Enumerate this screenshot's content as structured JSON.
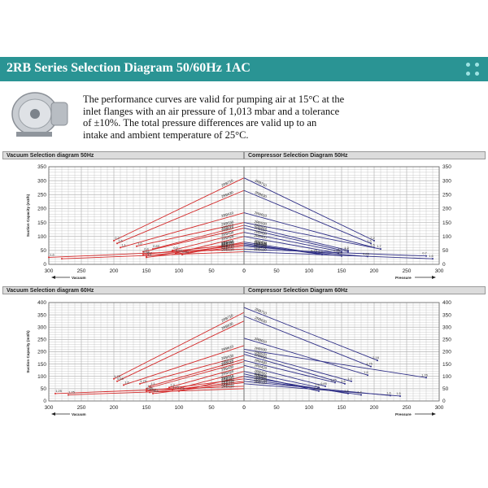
{
  "title": "2RB Series Selection Diagram 50/60Hz 1AC",
  "description_lines": [
    "The performance curves are valid for pumping air at 15°C at the",
    "inlet flanges with an air pressure of 1,013 mbar and a tolerance",
    "of ±10%. The total pressure differences are valid up to an",
    "intake and ambient temperature of 25°C."
  ],
  "colors": {
    "header_bg": "#2a9494",
    "vacuum": "#d42a2a",
    "pressure": "#2e2e86",
    "grid": "#b5b5b5"
  },
  "icons": {
    "product": "side-channel-blower-image",
    "menu": "dots-grid-icon"
  },
  "chart_data": [
    {
      "panel": "Vacuum Selection diagram 50Hz",
      "type": "line",
      "ylabel": "Suction Capacity (m3/h)",
      "xlabel": "Vacuum",
      "xlim": [
        300,
        0
      ],
      "ylim": [
        0,
        350
      ],
      "xticks": [
        300,
        250,
        200,
        150,
        100,
        50,
        0
      ],
      "yticks": [
        0,
        50,
        100,
        150,
        200,
        250,
        300,
        350
      ],
      "series": [
        {
          "name": "2RB710",
          "x": [
            200,
            0
          ],
          "y": [
            85,
            310
          ]
        },
        {
          "name": "2RB630",
          "x": [
            195,
            0
          ],
          "y": [
            75,
            265
          ]
        },
        {
          "name": "2RB610",
          "x": [
            190,
            0
          ],
          "y": [
            60,
            185
          ]
        },
        {
          "name": "2RB530",
          "x": [
            165,
            0
          ],
          "y": [
            65,
            150
          ]
        },
        {
          "name": "2RB520",
          "x": [
            140,
            0
          ],
          "y": [
            55,
            140
          ]
        },
        {
          "name": "2RB510",
          "x": [
            155,
            0
          ],
          "y": [
            45,
            130
          ]
        },
        {
          "name": "2RB430",
          "x": [
            110,
            0
          ],
          "y": [
            50,
            115
          ]
        },
        {
          "name": "2RB420",
          "x": [
            105,
            0
          ],
          "y": [
            40,
            100
          ]
        },
        {
          "name": "2RB410",
          "x": [
            95,
            0
          ],
          "y": [
            35,
            80
          ]
        },
        {
          "name": "2RB330",
          "x": [
            155,
            0
          ],
          "y": [
            35,
            75
          ]
        },
        {
          "name": "2RB320",
          "x": [
            150,
            0
          ],
          "y": [
            30,
            70
          ]
        },
        {
          "name": "2RB310",
          "x": [
            150,
            0
          ],
          "y": [
            25,
            65
          ]
        },
        {
          "name": "2RB210",
          "x": [
            300,
            0
          ],
          "y": [
            25,
            55
          ]
        },
        {
          "name": "2RB110",
          "x": [
            280,
            0
          ],
          "y": [
            20,
            45
          ]
        }
      ],
      "annotations": [
        "0,2",
        "1,6",
        "1,1",
        "1,0",
        "0,85",
        "0,4",
        "0,5",
        "0,55",
        "0,60",
        "0,65",
        "0,7",
        "1,1",
        "1,6"
      ]
    },
    {
      "panel": "Compressor Selection Diagram 50Hz",
      "type": "line",
      "ylabel": "",
      "xlabel": "Pressure",
      "xlim": [
        0,
        300
      ],
      "ylim": [
        0,
        350
      ],
      "xticks": [
        0,
        50,
        100,
        150,
        200,
        250,
        300
      ],
      "yticks": [
        0,
        50,
        100,
        150,
        200,
        250,
        300,
        350
      ],
      "series": [
        {
          "name": "2RB710",
          "x": [
            0,
            200
          ],
          "y": [
            310,
            85
          ]
        },
        {
          "name": "2RB630",
          "x": [
            0,
            195
          ],
          "y": [
            265,
            75
          ]
        },
        {
          "name": "2RB610",
          "x": [
            0,
            200
          ],
          "y": [
            185,
            60
          ]
        },
        {
          "name": "2RB530",
          "x": [
            0,
            210
          ],
          "y": [
            150,
            55
          ]
        },
        {
          "name": "2RB520",
          "x": [
            0,
            160
          ],
          "y": [
            140,
            50
          ]
        },
        {
          "name": "2RB510",
          "x": [
            0,
            160
          ],
          "y": [
            130,
            45
          ]
        },
        {
          "name": "2RB430",
          "x": [
            0,
            150
          ],
          "y": [
            115,
            45
          ]
        },
        {
          "name": "2RB420",
          "x": [
            0,
            145
          ],
          "y": [
            100,
            40
          ]
        },
        {
          "name": "2RB410",
          "x": [
            0,
            110
          ],
          "y": [
            80,
            40
          ]
        },
        {
          "name": "2RB330",
          "x": [
            0,
            120
          ],
          "y": [
            75,
            35
          ]
        },
        {
          "name": "2RB320",
          "x": [
            0,
            150
          ],
          "y": [
            70,
            30
          ]
        },
        {
          "name": "2RB310",
          "x": [
            0,
            190
          ],
          "y": [
            65,
            28
          ]
        },
        {
          "name": "2RB210",
          "x": [
            0,
            280
          ],
          "y": [
            55,
            30
          ]
        },
        {
          "name": "2RB110",
          "x": [
            0,
            290
          ],
          "y": [
            45,
            20
          ]
        }
      ],
      "annotations": [
        "2,2",
        "1,6",
        "1,5",
        "1,7",
        "1,3",
        "1,2",
        "1,4",
        "0,85",
        "0,75",
        "0,4",
        "0,6",
        "0,65",
        "0,7",
        "1,6"
      ]
    },
    {
      "panel": "Vacuum Selection diagram 60Hz",
      "type": "line",
      "ylabel": "Suction Capacity (m3/h)",
      "xlabel": "Vacuum",
      "xlim": [
        300,
        0
      ],
      "ylim": [
        0,
        400
      ],
      "xticks": [
        300,
        250,
        200,
        150,
        100,
        50,
        0
      ],
      "yticks": [
        0,
        50,
        100,
        150,
        200,
        250,
        300,
        350,
        400
      ],
      "series": [
        {
          "name": "2RB710",
          "x": [
            200,
            0
          ],
          "y": [
            90,
            360
          ]
        },
        {
          "name": "2RB630",
          "x": [
            195,
            0
          ],
          "y": [
            80,
            325
          ]
        },
        {
          "name": "2RB610",
          "x": [
            185,
            0
          ],
          "y": [
            65,
            225
          ]
        },
        {
          "name": "2RB530",
          "x": [
            160,
            0
          ],
          "y": [
            70,
            185
          ]
        },
        {
          "name": "2RB520",
          "x": [
            145,
            0
          ],
          "y": [
            60,
            170
          ]
        },
        {
          "name": "2RB510",
          "x": [
            150,
            0
          ],
          "y": [
            50,
            160
          ]
        },
        {
          "name": "2RB430",
          "x": [
            115,
            0
          ],
          "y": [
            55,
            140
          ]
        },
        {
          "name": "2RB420",
          "x": [
            110,
            0
          ],
          "y": [
            45,
            120
          ]
        },
        {
          "name": "2RB410",
          "x": [
            100,
            0
          ],
          "y": [
            40,
            100
          ]
        },
        {
          "name": "2RB330",
          "x": [
            150,
            0
          ],
          "y": [
            40,
            90
          ]
        },
        {
          "name": "2RB320",
          "x": [
            145,
            0
          ],
          "y": [
            35,
            80
          ]
        },
        {
          "name": "2RB310",
          "x": [
            140,
            0
          ],
          "y": [
            30,
            75
          ]
        },
        {
          "name": "2RB210",
          "x": [
            290,
            0
          ],
          "y": [
            30,
            60
          ]
        },
        {
          "name": "2RB110",
          "x": [
            270,
            0
          ],
          "y": [
            25,
            50
          ]
        }
      ],
      "annotations": [
        "1,75",
        "0,55",
        "1,6",
        "1,75",
        "1,1",
        "1,1",
        "1,3",
        "1,25",
        "0,9",
        "0,85",
        "0,62",
        "0,5",
        "1,25",
        "1,75"
      ]
    },
    {
      "panel": "Compressor Selection Diagram 60Hz",
      "type": "line",
      "ylabel": "",
      "xlabel": "Pressure",
      "xlim": [
        0,
        300
      ],
      "ylim": [
        0,
        400
      ],
      "xticks": [
        0,
        50,
        100,
        150,
        200,
        250,
        300
      ],
      "yticks": [
        0,
        50,
        100,
        150,
        200,
        250,
        300,
        350,
        400
      ],
      "series": [
        {
          "name": "2RB710",
          "x": [
            0,
            205
          ],
          "y": [
            380,
            165
          ]
        },
        {
          "name": "2RB630",
          "x": [
            0,
            195
          ],
          "y": [
            345,
            140
          ]
        },
        {
          "name": "2RB610",
          "x": [
            0,
            190
          ],
          "y": [
            255,
            105
          ]
        },
        {
          "name": "2RB530",
          "x": [
            0,
            280
          ],
          "y": [
            210,
            95
          ]
        },
        {
          "name": "2RB520",
          "x": [
            0,
            165
          ],
          "y": [
            200,
            80
          ]
        },
        {
          "name": "2RB510",
          "x": [
            0,
            155
          ],
          "y": [
            190,
            70
          ]
        },
        {
          "name": "2RB430",
          "x": [
            0,
            140
          ],
          "y": [
            165,
            75
          ]
        },
        {
          "name": "2RB420",
          "x": [
            0,
            125
          ],
          "y": [
            145,
            60
          ]
        },
        {
          "name": "2RB410",
          "x": [
            0,
            115
          ],
          "y": [
            120,
            55
          ]
        },
        {
          "name": "2RB330",
          "x": [
            0,
            115
          ],
          "y": [
            110,
            40
          ]
        },
        {
          "name": "2RB320",
          "x": [
            0,
            160
          ],
          "y": [
            100,
            30
          ]
        },
        {
          "name": "2RB310",
          "x": [
            0,
            180
          ],
          "y": [
            90,
            25
          ]
        },
        {
          "name": "2RB210",
          "x": [
            0,
            225
          ],
          "y": [
            80,
            22
          ]
        },
        {
          "name": "2RB110",
          "x": [
            0,
            240
          ],
          "y": [
            70,
            20
          ]
        }
      ],
      "annotations": [
        "2,18",
        "1,75",
        "1,6",
        "1,76",
        "1,4",
        "1,6",
        "1,25",
        "0,85",
        "0,9",
        "0,62",
        "1,5",
        "1,4",
        "1,6",
        "1,5"
      ]
    }
  ]
}
